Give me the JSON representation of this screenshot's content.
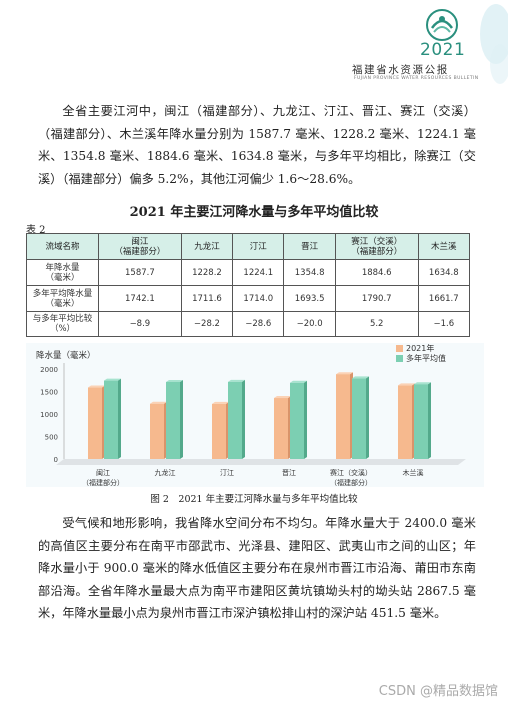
{
  "header": {
    "year": "2021",
    "title": "福建省水资源公报",
    "subtitle": "FUJIAN PROVINCE WATER RESOURCES BULLETIN"
  },
  "paragraph1": "全省主要江河中，闽江（福建部分）、九龙江、汀江、晋江、赛江（交溪）（福建部分）、木兰溪年降水量分别为 1587.7 毫米、1228.2 毫米、1224.1 毫米、1354.8 毫米、1884.6 毫米、1634.8 毫米，与多年平均相比，除赛江（交溪）（福建部分）偏多 5.2%，其他江河偏少 1.6～28.6%。",
  "table": {
    "title": "2021 年主要江河降水量与多年平均值比较",
    "label": "表 2",
    "headers": [
      "流域名称",
      "闽江\n（福建部分）",
      "九龙江",
      "汀江",
      "晋江",
      "赛江（交溪）\n（福建部分）",
      "木兰溪"
    ],
    "rows": [
      {
        "label": "年降水量\n（毫米）",
        "values": [
          "1587.7",
          "1228.2",
          "1224.1",
          "1354.8",
          "1884.6",
          "1634.8"
        ]
      },
      {
        "label": "多年平均降水量\n（毫米）",
        "values": [
          "1742.1",
          "1711.6",
          "1714.0",
          "1693.5",
          "1790.7",
          "1661.7"
        ]
      },
      {
        "label": "与多年平均比较\n（%）",
        "values": [
          "−8.9",
          "−28.2",
          "−28.6",
          "−20.0",
          "5.2",
          "−1.6"
        ]
      }
    ]
  },
  "chart_data": {
    "type": "bar",
    "ylabel": "降水量（毫米）",
    "ylim": [
      0,
      2000
    ],
    "yticks": [
      "0",
      "500",
      "1000",
      "1500",
      "2000"
    ],
    "categories": [
      "闽江\n（福建部分）",
      "九龙江",
      "汀江",
      "晋江",
      "赛江（交溪）\n（福建部分）",
      "木兰溪"
    ],
    "series": [
      {
        "name": "2021年",
        "color": "#f6b98e",
        "values": [
          1587.7,
          1228.2,
          1224.1,
          1354.8,
          1884.6,
          1634.8
        ]
      },
      {
        "name": "多年平均值",
        "color": "#7ccfb2",
        "values": [
          1742.1,
          1711.6,
          1714.0,
          1693.5,
          1790.7,
          1661.7
        ]
      }
    ],
    "legend": "top-right",
    "grid": false
  },
  "figure_caption": "图 2　2021 年主要江河降水量与多年平均值比较",
  "paragraph2": "受气候和地形影响，我省降水空间分布不均匀。年降水量大于 2400.0 毫米的高值区主要分布在南平市邵武市、光泽县、建阳区、武夷山市之间的山区；年降水量小于 900.0 毫米的降水低值区主要分布在泉州市晋江市沿海、莆田市东南部沿海。全省年降水量最大点为南平市建阳区黄坑镇坳头村的坳头站 2867.5 毫米，年降水量最小点为泉州市晋江市深沪镇松排山村的深沪站 451.5 毫米。",
  "watermark": "CSDN @精品数据馆"
}
